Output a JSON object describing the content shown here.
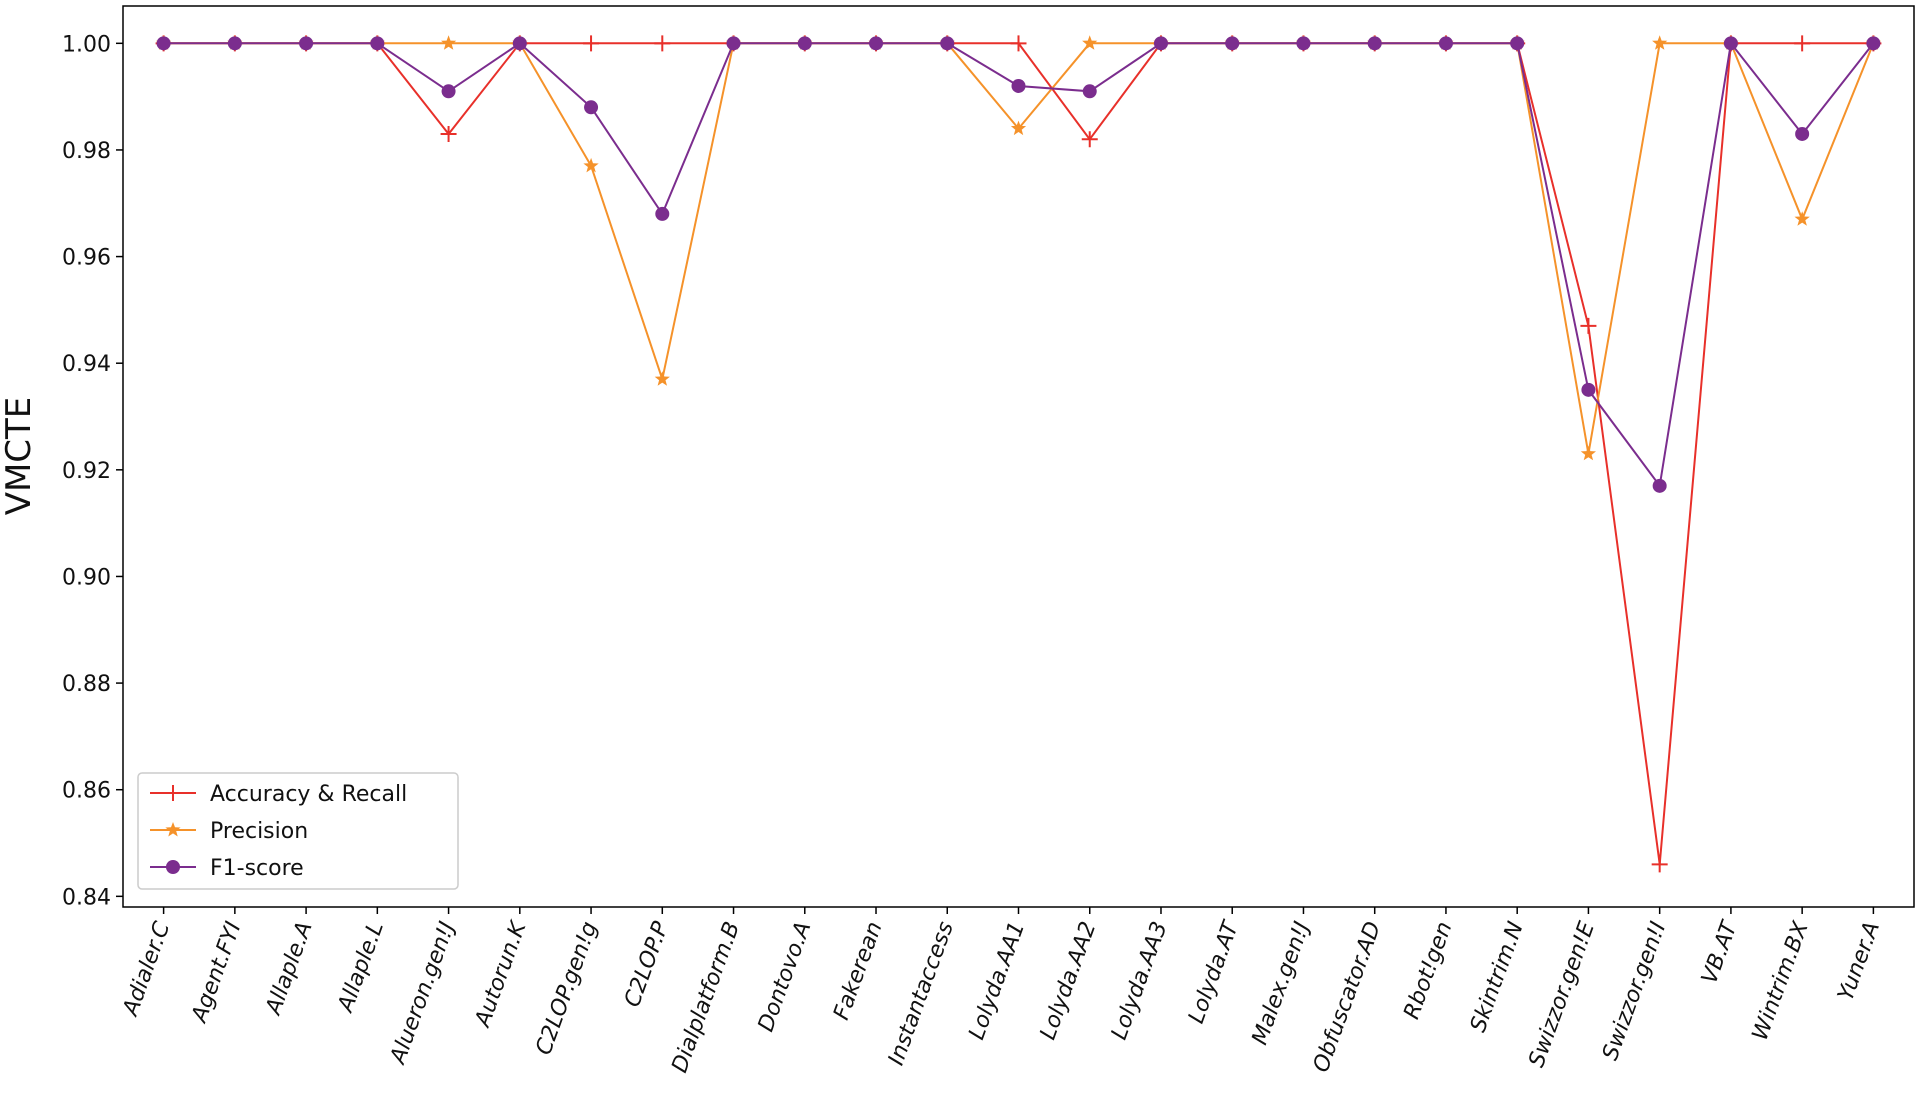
{
  "chart_data": {
    "type": "line",
    "y_label": "VMCTE",
    "categories": [
      "Adialer.C",
      "Agent.FYI",
      "Allaple.A",
      "Allaple.L",
      "Alueron.gen!J",
      "Autorun.K",
      "C2LOP.gen!g",
      "C2LOP.P",
      "Dialplatform.B",
      "Dontovo.A",
      "Fakerean",
      "Instantaccess",
      "Lolyda.AA1",
      "Lolyda.AA2",
      "Lolyda.AA3",
      "Lolyda.AT",
      "Malex.gen!J",
      "Obfuscator.AD",
      "Rbot!gen",
      "Skintrim.N",
      "Swizzor.gen!E",
      "Swizzor.gen!I",
      "VB.AT",
      "Wintrim.BX",
      "Yuner.A"
    ],
    "series": [
      {
        "name": "Accuracy & Recall",
        "color": "#e8302a",
        "marker": "plus",
        "values": [
          1,
          1,
          1,
          1,
          0.983,
          1,
          1,
          1,
          1,
          1,
          1,
          1,
          1,
          0.982,
          1,
          1,
          1,
          1,
          1,
          1,
          0.947,
          0.846,
          1,
          1,
          1
        ]
      },
      {
        "name": "Precision",
        "color": "#f5922a",
        "marker": "star",
        "values": [
          1,
          1,
          1,
          1,
          1,
          1,
          0.977,
          0.937,
          1,
          1,
          1,
          1,
          0.984,
          1,
          1,
          1,
          1,
          1,
          1,
          1,
          0.923,
          1,
          1,
          0.967,
          1
        ]
      },
      {
        "name": "F1-score",
        "color": "#7b2d8e",
        "marker": "circle",
        "values": [
          1,
          1,
          1,
          1,
          0.991,
          1,
          0.988,
          0.968,
          1,
          1,
          1,
          1,
          0.992,
          0.991,
          1,
          1,
          1,
          1,
          1,
          1,
          0.935,
          0.917,
          1,
          0.983,
          1
        ]
      }
    ],
    "ylim": [
      0.838,
      1.007
    ],
    "yticks": [
      0.84,
      0.86,
      0.88,
      {
        "value": 0.9,
        "label": "0.90"
      },
      0.92,
      0.94,
      0.96,
      0.98,
      {
        "value": 1.0,
        "label": "1.00"
      }
    ],
    "legend": "lower left"
  }
}
